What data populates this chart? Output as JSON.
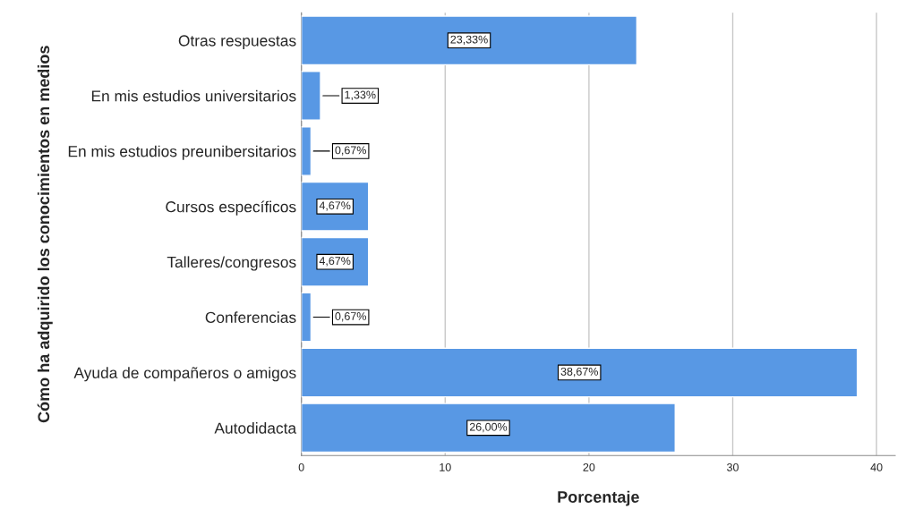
{
  "chart_data": {
    "type": "bar",
    "orientation": "horizontal",
    "xlabel": "Porcentaje",
    "ylabel": "Cómo ha adquirido los conocimientos en medios",
    "categories": [
      "Otras respuestas",
      "En mis estudios universitarios",
      "En mis estudios preunibersitarios",
      "Cursos específicos",
      "Talleres/congresos",
      "Conferencias",
      "Ayuda de compañeros o amigos",
      "Autodidacta"
    ],
    "values": [
      23.33,
      1.33,
      0.67,
      4.67,
      4.67,
      0.67,
      38.67,
      26.0
    ],
    "value_labels": [
      "23,33%",
      "1,33%",
      "0,67%",
      "4,67%",
      "4,67%",
      "0,67%",
      "38,67%",
      "26,00%"
    ],
    "color": "#5898e4",
    "xlim": [
      0,
      41.3
    ],
    "xticks": [
      0,
      10,
      20,
      30,
      40
    ],
    "grid": "x"
  }
}
